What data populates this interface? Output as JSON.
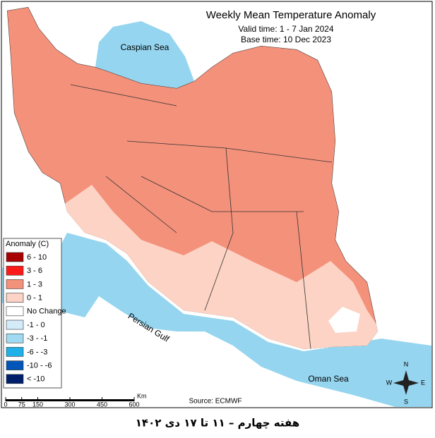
{
  "header": {
    "title": "Weekly Mean Temperature Anomaly",
    "valid_time": "Valid time: 1 - 7 Jan 2024",
    "base_time": "Base time: 10 Dec 2023"
  },
  "legend": {
    "title": "Anomaly (C)",
    "items": [
      {
        "label": "6 - 10",
        "color": "#a80000"
      },
      {
        "label": "3 - 6",
        "color": "#ff1a1a"
      },
      {
        "label": "1 - 3",
        "color": "#f4917b"
      },
      {
        "label": "0 - 1",
        "color": "#fcd3c4"
      },
      {
        "label": "No Change",
        "color": "#ffffff"
      },
      {
        "label": "-1 - 0",
        "color": "#d4ebfa"
      },
      {
        "label": "-3 - -1",
        "color": "#9fd9f2"
      },
      {
        "label": "-6 - -3",
        "color": "#1fb0e8"
      },
      {
        "label": "-10 - -6",
        "color": "#0056b8"
      },
      {
        "label": "< -10",
        "color": "#001f6b"
      }
    ]
  },
  "map_labels": {
    "caspian": "Caspian Sea",
    "gulf": "Persian Gulf",
    "oman": "Oman Sea"
  },
  "scale_bar": {
    "labels": [
      0,
      75,
      150,
      300,
      450,
      600
    ],
    "unit": "Km"
  },
  "compass": {
    "n": "N",
    "s": "S",
    "e": "E",
    "w": "W"
  },
  "source": "Source: ECMWF",
  "footer": "هفته چهارم – ۱۱ تا ۱۷ دی ۱۴۰۲"
}
